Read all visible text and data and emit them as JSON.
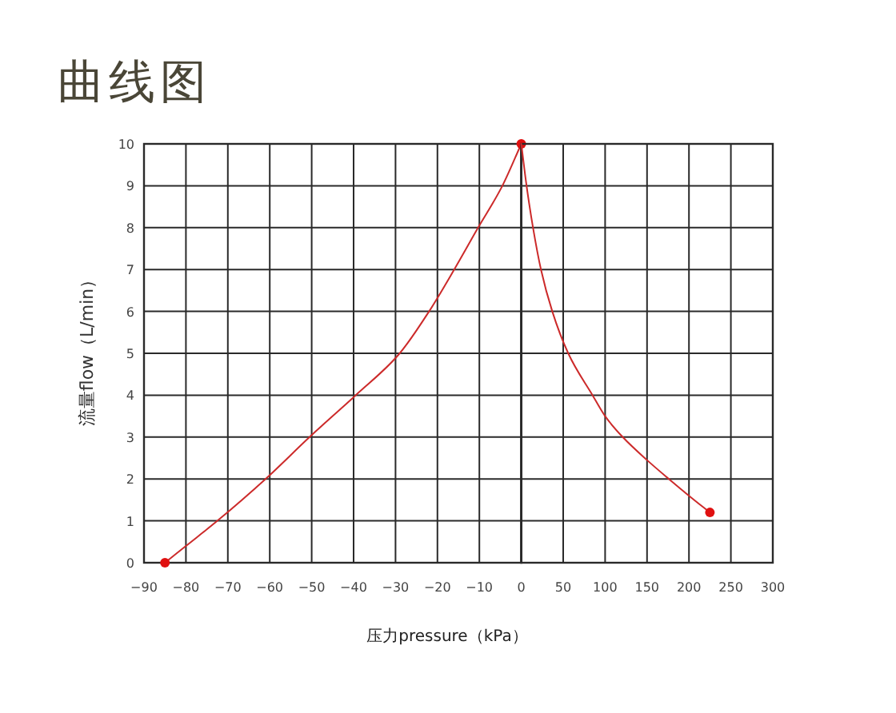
{
  "chart_data": [
    {
      "type": "line",
      "title": "曲线图",
      "xlabel": "压力pressure（kPa）",
      "ylabel": "流量flow（L/min）",
      "xlim": [
        -90,
        0
      ],
      "ylim": [
        0,
        10
      ],
      "xticks": [
        -90,
        -80,
        -70,
        -60,
        -50,
        -40,
        -30,
        -20,
        -10,
        0
      ],
      "yticks": [
        0,
        1,
        2,
        3,
        4,
        5,
        6,
        7,
        8,
        9,
        10
      ],
      "grid": true,
      "series": [
        {
          "color": "#cc2a2a",
          "marker": "none",
          "x": [
            -85,
            -80,
            -72.5,
            -61,
            -50.5,
            -39.5,
            -29,
            -22,
            -16,
            -10.3,
            -4.5,
            0
          ],
          "values": [
            0,
            0.4,
            1,
            2,
            3,
            4,
            5,
            6,
            7,
            8,
            9,
            10
          ]
        },
        {
          "type": "scatter",
          "color": "#e01010",
          "marker": "circle",
          "x": [
            -85,
            0
          ],
          "values": [
            0,
            10
          ]
        }
      ]
    },
    {
      "type": "line",
      "xlim": [
        0,
        300
      ],
      "ylim": [
        0,
        10
      ],
      "xticks": [
        {
          "value": 0,
          "label": null
        },
        50,
        100,
        150,
        200,
        250,
        300
      ],
      "yticks": [
        0,
        1,
        2,
        3,
        4,
        5,
        6,
        7,
        8,
        9,
        10
      ],
      "tick_labels": "x",
      "grid": true,
      "series": [
        {
          "color": "#cc2a2a",
          "marker": "none",
          "x": [
            0,
            6.3,
            14,
            23.5,
            37,
            56,
            85,
            100,
            121,
            150,
            176,
            200,
            225
          ],
          "values": [
            10,
            9,
            8,
            7,
            6,
            5,
            4,
            3.5,
            3,
            2.45,
            2,
            1.6,
            1.2
          ]
        },
        {
          "type": "scatter",
          "color": "#e01010",
          "marker": "circle",
          "x": [
            225
          ],
          "values": [
            1.2
          ]
        }
      ]
    }
  ]
}
